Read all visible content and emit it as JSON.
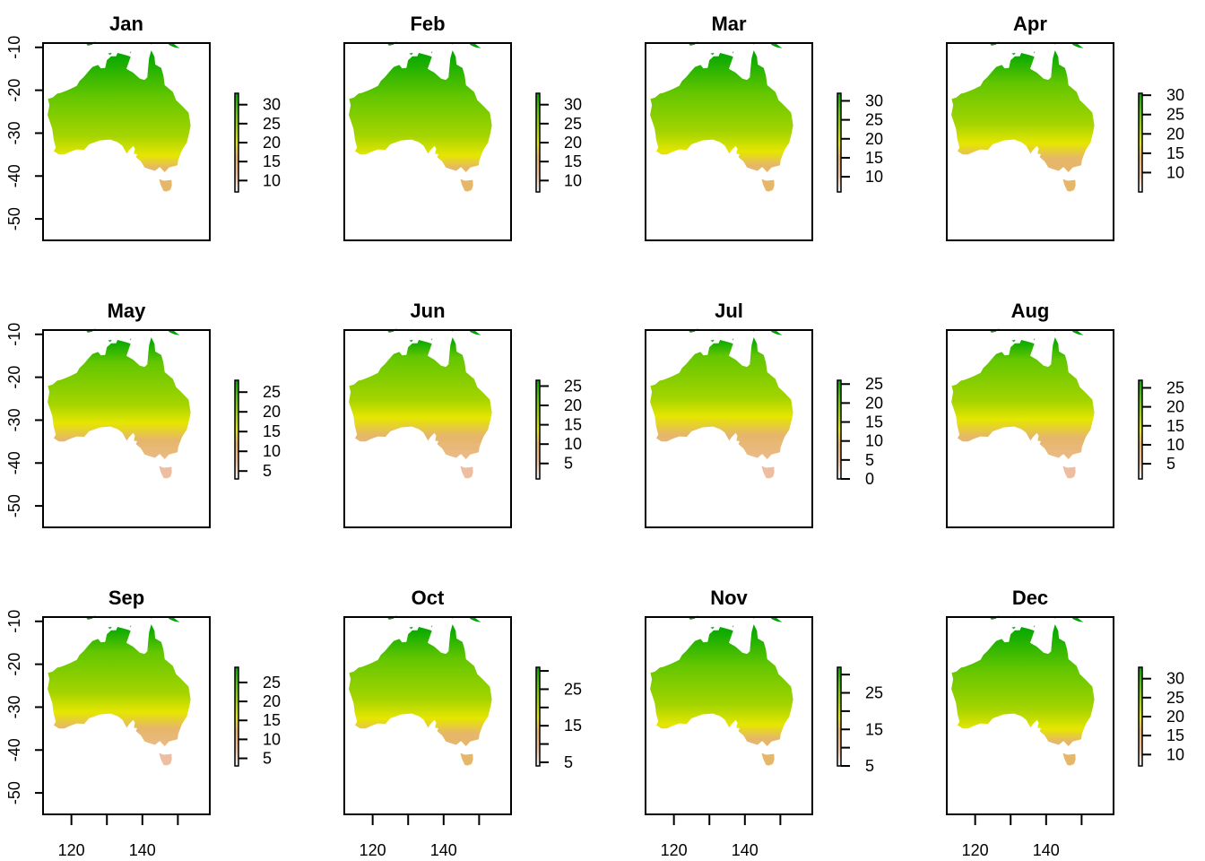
{
  "chart_data": {
    "type": "heatmap",
    "description": "Monthly mean temperature raster maps of Australia (12 panels, 3 rows x 4 columns)",
    "xlabel": "",
    "ylabel": "",
    "x_axis": {
      "range": [
        112,
        159
      ],
      "ticks": [
        120,
        130,
        140,
        150
      ],
      "tick_labels": [
        "120",
        "140"
      ],
      "label_values": [
        120,
        140
      ],
      "shown_on_row": 3
    },
    "y_axis": {
      "range": [
        -55,
        -9
      ],
      "ticks": [
        -10,
        -20,
        -30,
        -40,
        -50
      ],
      "tick_labels": [
        "-10",
        "-20",
        "-30",
        "-40",
        "-50"
      ],
      "shown_on_column": 1
    },
    "colormap": [
      "#f2f2f2",
      "#eebea0",
      "#e6b66a",
      "#e6e600",
      "#a4d400",
      "#63c600",
      "#00a600"
    ],
    "panels": [
      {
        "title": "Jan",
        "legend_ticks": [
          10,
          15,
          20,
          25,
          30
        ],
        "legend_range": [
          7,
          33
        ],
        "warmth": 0.85
      },
      {
        "title": "Feb",
        "legend_ticks": [
          10,
          15,
          20,
          25,
          30
        ],
        "legend_range": [
          7,
          33
        ],
        "warmth": 0.85
      },
      {
        "title": "Mar",
        "legend_ticks": [
          10,
          15,
          20,
          25,
          30
        ],
        "legend_range": [
          6,
          32
        ],
        "warmth": 0.78
      },
      {
        "title": "Apr",
        "legend_ticks": [
          10,
          15,
          20,
          25,
          30
        ],
        "legend_range": [
          5,
          30.5
        ],
        "warmth": 0.62
      },
      {
        "title": "May",
        "legend_ticks": [
          5,
          20,
          15,
          10,
          25
        ],
        "legend_range": [
          3,
          28
        ],
        "warmth": 0.48
      },
      {
        "title": "Jun",
        "legend_ticks": [
          5,
          10,
          15,
          20,
          25
        ],
        "legend_range": [
          1,
          26.5
        ],
        "warmth": 0.38
      },
      {
        "title": "Jul",
        "legend_ticks": [
          0,
          5,
          10,
          15,
          20,
          25
        ],
        "legend_range": [
          0,
          26
        ],
        "warmth": 0.36
      },
      {
        "title": "Aug",
        "legend_ticks": [
          5,
          10,
          15,
          20,
          25
        ],
        "legend_range": [
          1,
          27
        ],
        "warmth": 0.42
      },
      {
        "title": "Sep",
        "legend_ticks": [
          5,
          10,
          15,
          20,
          25
        ],
        "legend_range": [
          3,
          29
        ],
        "warmth": 0.52
      },
      {
        "title": "Oct",
        "legend_ticks": [
          5,
          10,
          15,
          20,
          25,
          30
        ],
        "legend_tick_labels": [
          "5",
          "",
          "15",
          "",
          "25",
          ""
        ],
        "legend_range": [
          4,
          31
        ],
        "warmth": 0.64
      },
      {
        "title": "Nov",
        "legend_ticks": [
          5,
          10,
          15,
          20,
          25,
          30
        ],
        "legend_tick_labels": [
          "5",
          "",
          "15",
          "",
          "25",
          ""
        ],
        "legend_range": [
          5,
          32
        ],
        "warmth": 0.76
      },
      {
        "title": "Dec",
        "legend_ticks": [
          10,
          15,
          20,
          25,
          30
        ],
        "legend_range": [
          7,
          33
        ],
        "warmth": 0.84
      }
    ]
  }
}
